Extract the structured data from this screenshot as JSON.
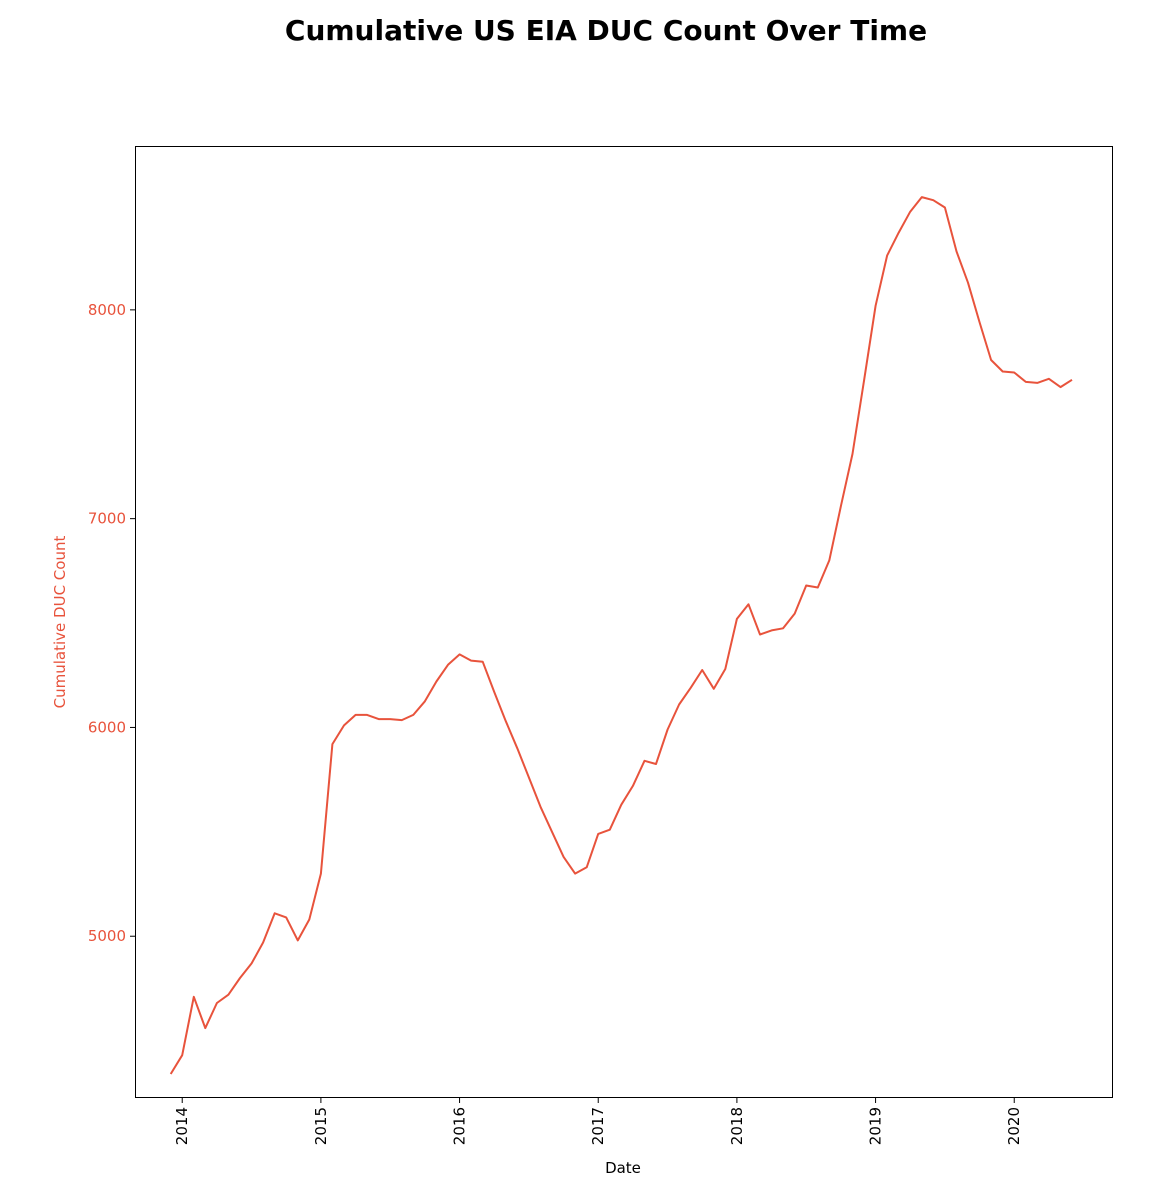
{
  "chart_data": {
    "type": "line",
    "title": "Cumulative US EIA DUC Count Over Time",
    "xlabel": "Date",
    "ylabel": "Cumulative DUC Count",
    "ylim": [
      4230,
      8780
    ],
    "xlim": [
      "2013-09-01",
      "2020-09-15"
    ],
    "yticks": [
      5000,
      6000,
      7000,
      8000
    ],
    "xticks": [
      "2014",
      "2015",
      "2016",
      "2017",
      "2018",
      "2019",
      "2020"
    ],
    "grid": false,
    "legend": "none",
    "colors": {
      "line": "#e8533c",
      "ylabel": "#e8533c",
      "yticks": "#e8533c",
      "frame": "#000000"
    },
    "series": [
      {
        "x": [
          "2013-12",
          "2014-01",
          "2014-02",
          "2014-03",
          "2014-04",
          "2014-05",
          "2014-06",
          "2014-07",
          "2014-08",
          "2014-09",
          "2014-10",
          "2014-11",
          "2014-12",
          "2015-01",
          "2015-02",
          "2015-03",
          "2015-04",
          "2015-05",
          "2015-06",
          "2015-07",
          "2015-08",
          "2015-09",
          "2015-10",
          "2015-11",
          "2015-12",
          "2016-01",
          "2016-02",
          "2016-03",
          "2016-04",
          "2016-05",
          "2016-06",
          "2016-07",
          "2016-08",
          "2016-09",
          "2016-10",
          "2016-11",
          "2016-12",
          "2017-01",
          "2017-02",
          "2017-03",
          "2017-04",
          "2017-05",
          "2017-06",
          "2017-07",
          "2017-08",
          "2017-09",
          "2017-10",
          "2017-11",
          "2017-12",
          "2018-01",
          "2018-02",
          "2018-03",
          "2018-04",
          "2018-05",
          "2018-06",
          "2018-07",
          "2018-08",
          "2018-09",
          "2018-10",
          "2018-11",
          "2018-12",
          "2019-01",
          "2019-02",
          "2019-03",
          "2019-04",
          "2019-05",
          "2019-06",
          "2019-07",
          "2019-08",
          "2019-09",
          "2019-10",
          "2019-11",
          "2019-12",
          "2020-01",
          "2020-02",
          "2020-03",
          "2020-04",
          "2020-05",
          "2020-06"
        ],
        "y": [
          4340,
          4430,
          4710,
          4560,
          4680,
          4720,
          4800,
          4870,
          4970,
          5110,
          5090,
          4980,
          5080,
          5300,
          5920,
          6010,
          6060,
          6060,
          6040,
          6040,
          6035,
          6060,
          6125,
          6220,
          6300,
          6350,
          6320,
          6315,
          6170,
          6030,
          5900,
          5760,
          5620,
          5500,
          5380,
          5300,
          5330,
          5490,
          5510,
          5630,
          5720,
          5840,
          5825,
          5990,
          6110,
          6190,
          6275,
          6185,
          6280,
          6520,
          6590,
          6445,
          6465,
          6475,
          6545,
          6680,
          6670,
          6800,
          7060,
          7310,
          7660,
          8020,
          8260,
          8370,
          8470,
          8540,
          8525,
          8490,
          8280,
          8130,
          7940,
          7760,
          7705,
          7700,
          7655,
          7650,
          7670,
          7630,
          7665
        ]
      }
    ]
  }
}
